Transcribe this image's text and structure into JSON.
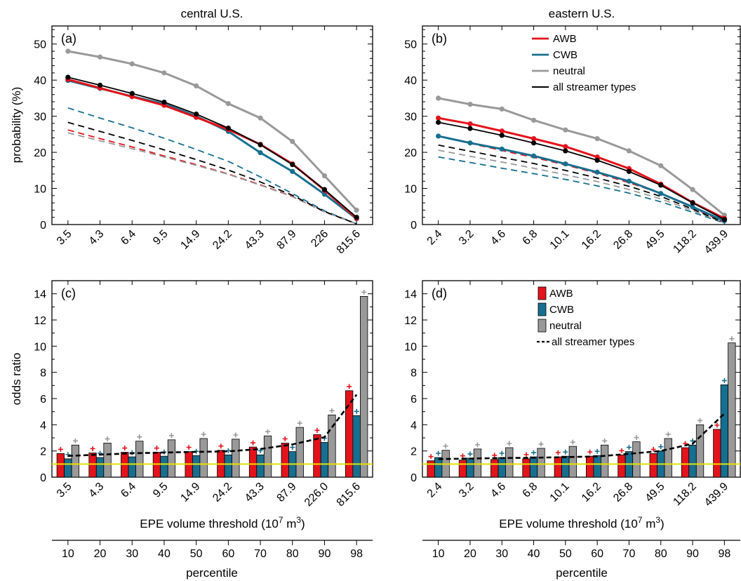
{
  "figure": {
    "col_titles": [
      "central U.S.",
      "eastern U.S."
    ],
    "y_label_prob": "probability (%)",
    "y_label_odds": "odds ratio",
    "x_label_volume": "EPE volume threshold (10",
    "x_label_exp": "7",
    "x_label_unit": " m",
    "x_label_unit_exp": "3",
    "x_label_close": ")",
    "x_label_percentile": "percentile",
    "percentiles": [
      "10",
      "20",
      "30",
      "40",
      "50",
      "60",
      "70",
      "80",
      "90",
      "98"
    ]
  },
  "colors": {
    "AWB": "#e3131b",
    "CWB": "#176f8f",
    "neutral": "#999999",
    "all": "#000000",
    "reference": "#e8e000"
  },
  "chart_data": [
    {
      "type": "line",
      "panel": "(a)",
      "column": "central U.S.",
      "categories": [
        "3.5",
        "4.3",
        "6.4",
        "9.5",
        "14.9",
        "24.2",
        "43.3",
        "87.9",
        "226",
        "815.6"
      ],
      "ylim": [
        0,
        55
      ],
      "yticks": [
        0,
        10,
        20,
        30,
        40,
        50
      ],
      "ylabel": "probability (%)",
      "series": [
        {
          "name": "AWB",
          "key": "AWB",
          "values": [
            40.2,
            37.8,
            35.4,
            33.0,
            29.7,
            26.3,
            22.2,
            16.8,
            9.5,
            1.7
          ]
        },
        {
          "name": "CWB",
          "key": "CWB",
          "values": [
            39.9,
            37.7,
            35.5,
            33.4,
            30.0,
            25.8,
            19.9,
            14.7,
            8.4,
            1.6
          ]
        },
        {
          "name": "neutral",
          "key": "neutral",
          "values": [
            48.0,
            46.4,
            44.5,
            42.0,
            38.4,
            33.5,
            29.5,
            23.0,
            13.5,
            4.0
          ]
        },
        {
          "name": "all streamer types",
          "key": "all",
          "values": [
            40.8,
            38.6,
            36.3,
            33.9,
            30.6,
            26.7,
            22.1,
            16.6,
            9.7,
            2.0
          ]
        }
      ],
      "dashed_series": [
        {
          "key": "AWB",
          "values": [
            26.2,
            23.8,
            21.5,
            19.0,
            16.6,
            14.0,
            11.0,
            7.8,
            3.5,
            0.2
          ]
        },
        {
          "key": "CWB",
          "values": [
            32.3,
            29.5,
            26.8,
            23.9,
            20.8,
            17.5,
            13.2,
            8.6,
            3.8,
            0.2
          ]
        },
        {
          "key": "neutral",
          "values": [
            25.4,
            23.2,
            21.0,
            18.7,
            16.4,
            13.9,
            10.9,
            7.7,
            3.5,
            0.2
          ]
        },
        {
          "key": "all",
          "values": [
            28.3,
            25.8,
            23.3,
            20.7,
            18.0,
            15.1,
            11.8,
            8.1,
            3.6,
            0.2
          ]
        }
      ]
    },
    {
      "type": "line",
      "panel": "(b)",
      "column": "eastern U.S.",
      "categories": [
        "2.4",
        "3.2",
        "4.6",
        "6.8",
        "10.1",
        "16.2",
        "26.8",
        "49.5",
        "118.2",
        "439.9"
      ],
      "ylim": [
        0,
        55
      ],
      "yticks": [
        0,
        10,
        20,
        30,
        40,
        50
      ],
      "legend": "top-right",
      "series": [
        {
          "name": "AWB",
          "key": "AWB",
          "values": [
            29.5,
            27.9,
            25.9,
            23.8,
            21.6,
            18.7,
            15.5,
            11.2,
            6.1,
            1.7
          ]
        },
        {
          "name": "CWB",
          "key": "CWB",
          "values": [
            24.5,
            22.6,
            20.9,
            19.0,
            16.8,
            14.5,
            12.0,
            8.6,
            4.9,
            1.0
          ]
        },
        {
          "name": "neutral",
          "key": "neutral",
          "values": [
            35.0,
            33.3,
            32.0,
            28.9,
            26.2,
            23.8,
            20.4,
            16.3,
            9.7,
            2.6
          ]
        },
        {
          "name": "all streamer types",
          "key": "all",
          "values": [
            28.3,
            26.6,
            24.7,
            22.6,
            20.4,
            17.8,
            14.7,
            10.9,
            6.0,
            1.4
          ]
        }
      ],
      "dashed_series": [
        {
          "key": "AWB",
          "values": [
            24.5,
            22.5,
            20.5,
            18.6,
            16.5,
            14.2,
            11.6,
            8.6,
            4.7,
            0.6
          ]
        },
        {
          "key": "CWB",
          "values": [
            18.7,
            17.2,
            15.6,
            14.1,
            12.5,
            10.7,
            8.7,
            6.3,
            3.4,
            0.4
          ]
        },
        {
          "key": "neutral",
          "values": [
            20.6,
            18.9,
            17.3,
            15.6,
            13.8,
            11.9,
            9.7,
            7.1,
            3.9,
            0.5
          ]
        },
        {
          "key": "all",
          "values": [
            22.0,
            20.3,
            18.6,
            16.9,
            15.0,
            12.9,
            10.6,
            7.8,
            4.3,
            0.5
          ]
        }
      ]
    },
    {
      "type": "bar",
      "panel": "(c)",
      "column": "central U.S.",
      "categories": [
        "3.5",
        "4.3",
        "6.4",
        "9.5",
        "14.9",
        "24.2",
        "43.3",
        "87.9",
        "226.0",
        "815.6"
      ],
      "ylim": [
        0,
        15
      ],
      "yticks": [
        0,
        2,
        4,
        6,
        8,
        10,
        12,
        14
      ],
      "ylabel": "odds ratio",
      "reference_line": 1,
      "series": [
        {
          "name": "AWB",
          "key": "AWB",
          "values": [
            1.8,
            1.85,
            1.9,
            1.9,
            1.95,
            2.05,
            2.3,
            2.6,
            3.25,
            6.6
          ]
        },
        {
          "name": "CWB",
          "key": "CWB",
          "values": [
            1.4,
            1.5,
            1.55,
            1.6,
            1.65,
            1.7,
            1.7,
            1.95,
            2.65,
            4.7
          ]
        },
        {
          "name": "neutral",
          "key": "neutral",
          "values": [
            2.45,
            2.6,
            2.75,
            2.85,
            2.95,
            2.9,
            3.15,
            3.8,
            4.75,
            13.8
          ]
        }
      ],
      "line_series": {
        "name": "all streamer types",
        "key": "all",
        "values": [
          1.62,
          1.72,
          1.82,
          1.88,
          1.93,
          1.97,
          2.15,
          2.5,
          3.05,
          6.3
        ]
      }
    },
    {
      "type": "bar",
      "panel": "(d)",
      "column": "eastern U.S.",
      "categories": [
        "2.4",
        "3.2",
        "4.6",
        "6.8",
        "10.1",
        "16.2",
        "26.8",
        "49.5",
        "118.2",
        "439.9"
      ],
      "ylim": [
        0,
        15
      ],
      "yticks": [
        0,
        2,
        4,
        6,
        8,
        10,
        12,
        14
      ],
      "reference_line": 1,
      "legend": "top-right",
      "series": [
        {
          "name": "AWB",
          "key": "AWB",
          "values": [
            1.25,
            1.3,
            1.35,
            1.4,
            1.55,
            1.6,
            1.7,
            1.8,
            2.25,
            3.65
          ]
        },
        {
          "name": "CWB",
          "key": "CWB",
          "values": [
            1.5,
            1.45,
            1.5,
            1.55,
            1.6,
            1.65,
            1.95,
            2.0,
            2.45,
            7.05
          ]
        },
        {
          "name": "neutral",
          "key": "neutral",
          "values": [
            2.05,
            2.15,
            2.25,
            2.2,
            2.35,
            2.45,
            2.7,
            2.95,
            4.0,
            10.25
          ]
        }
      ],
      "line_series": {
        "name": "all streamer types",
        "key": "all",
        "values": [
          1.38,
          1.42,
          1.46,
          1.48,
          1.53,
          1.58,
          1.78,
          2.0,
          2.55,
          4.85
        ]
      }
    }
  ]
}
